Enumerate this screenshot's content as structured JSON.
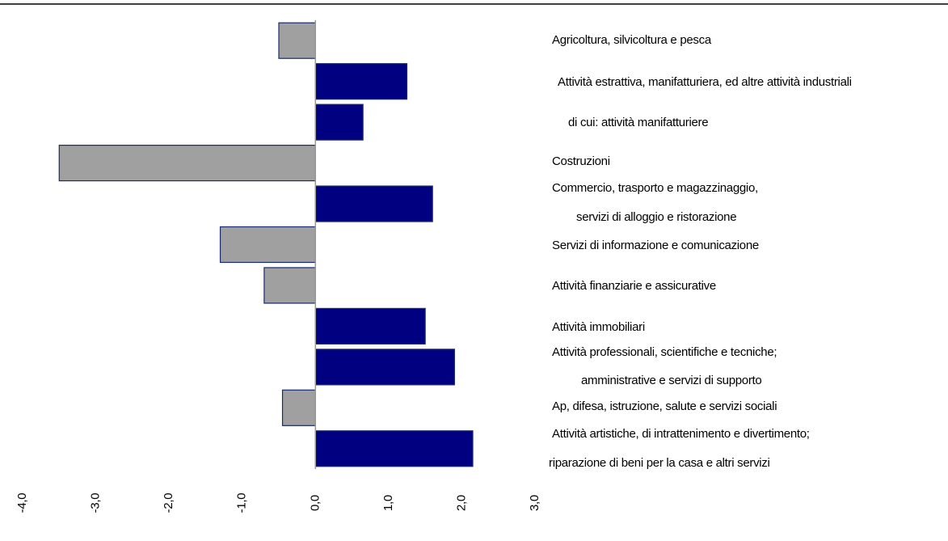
{
  "chart_data": {
    "type": "barh",
    "categories": [
      [
        "Agricoltura, silvicoltura e pesca"
      ],
      [
        "Attività estrattiva, manifatturiera, ed altre attività industriali"
      ],
      [
        "di cui: attività manifatturiere"
      ],
      [
        "Costruzioni"
      ],
      [
        "Commercio, trasporto e magazzinaggio,",
        "servizi di alloggio e ristorazione"
      ],
      [
        "Servizi di informazione e comunicazione"
      ],
      [
        "Attività finanziarie e assicurative"
      ],
      [
        "Attività immobiliari"
      ],
      [
        "Attività professionali, scientifiche e tecniche;",
        "amministrative e servizi di supporto"
      ],
      [
        "Ap, difesa, istruzione, salute e  servizi sociali"
      ],
      [
        "Attività artistiche, di intrattenimento e divertimento;",
        "riparazione di beni per la casa e altri servizi"
      ]
    ],
    "values": [
      -0.5,
      1.25,
      0.65,
      -3.5,
      1.6,
      -1.3,
      -0.7,
      1.5,
      1.9,
      -0.45,
      2.15
    ],
    "colors": [
      "#a0a0a0",
      "#000080",
      "#000080",
      "#a0a0a0",
      "#000080",
      "#a0a0a0",
      "#a0a0a0",
      "#000080",
      "#000080",
      "#a0a0a0",
      "#000080"
    ],
    "xlim": [
      -4,
      3
    ],
    "xticks": [
      {
        "value": -4,
        "label": "-4,0"
      },
      {
        "value": -3,
        "label": "-3,0"
      },
      {
        "value": -2,
        "label": "-2,0"
      },
      {
        "value": -1,
        "label": "-1,0"
      },
      {
        "value": 0,
        "label": "0,0"
      },
      {
        "value": 1,
        "label": "1,0"
      },
      {
        "value": 2,
        "label": "2,0"
      },
      {
        "value": 3,
        "label": "3,0"
      }
    ]
  }
}
